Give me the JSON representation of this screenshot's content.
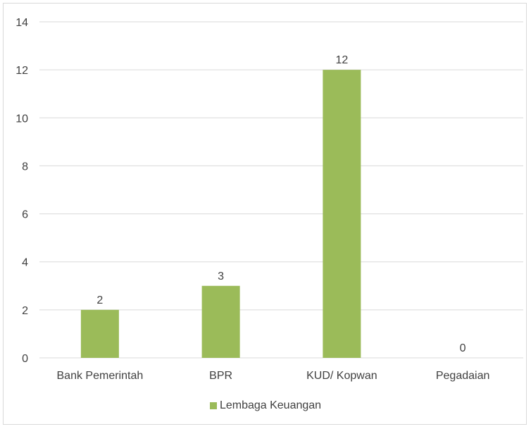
{
  "chart_data": {
    "type": "bar",
    "title": "",
    "xlabel": "",
    "ylabel": "",
    "categories": [
      "Bank Pemerintah",
      "BPR",
      "KUD/ Kopwan",
      "Pegadaian"
    ],
    "series": [
      {
        "name": "Lembaga Keuangan",
        "values": [
          2,
          3,
          12,
          0
        ],
        "color": "#9bbb59"
      }
    ],
    "ylim": [
      0,
      14
    ],
    "yticks": [
      0,
      2,
      4,
      6,
      8,
      10,
      12,
      14
    ],
    "grid": true,
    "data_labels": true,
    "legend_position": "bottom"
  }
}
